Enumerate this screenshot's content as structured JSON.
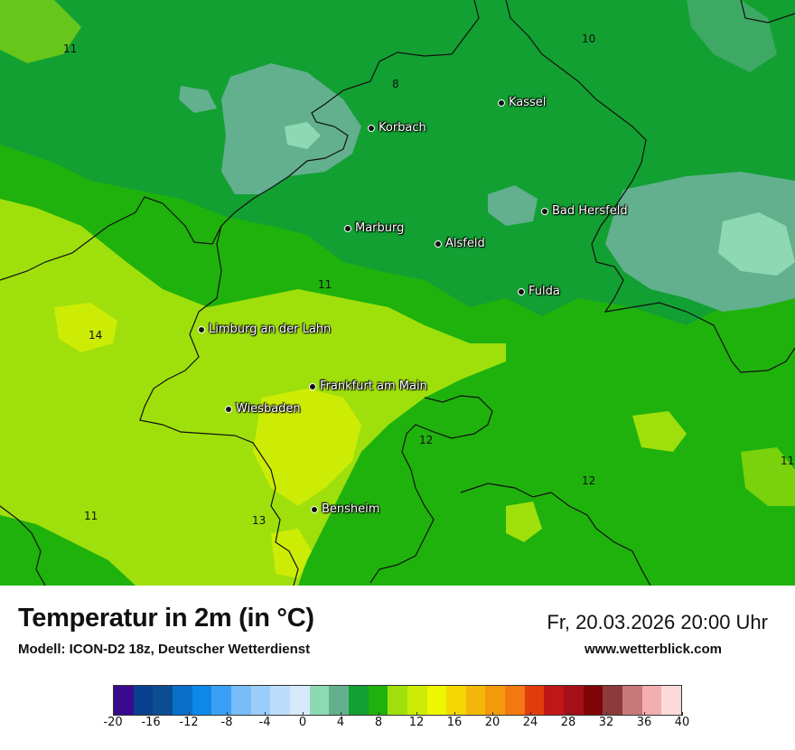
{
  "header": {
    "title": "Temperatur in 2m (in °C)",
    "model": "Modell: ICON-D2 18z, Deutscher Wetterdienst",
    "datetime": "Fr, 20.03.2026 20:00 Uhr",
    "website": "www.wetterblick.com"
  },
  "map": {
    "cities": [
      {
        "name": "Kassel"
      },
      {
        "name": "Korbach"
      },
      {
        "name": "Bad Hersfeld"
      },
      {
        "name": "Marburg"
      },
      {
        "name": "Alsfeld"
      },
      {
        "name": "Fulda"
      },
      {
        "name": "Limburg an der Lahn"
      },
      {
        "name": "Frankfurt am Main"
      },
      {
        "name": "Wiesbaden"
      },
      {
        "name": "Bensheim"
      }
    ],
    "isolines": [
      "11",
      "10",
      "8",
      "11",
      "14",
      "12",
      "12",
      "11",
      "11",
      "13"
    ]
  },
  "legend": {
    "colors": [
      "#3a0a8c",
      "#08408f",
      "#0a4d91",
      "#0a6fc9",
      "#0e88e8",
      "#3aa0f5",
      "#78bcf8",
      "#9acdfa",
      "#bcdcfb",
      "#d6e9fb",
      "#8ed8b4",
      "#62b08e",
      "#12a032",
      "#1fb20c",
      "#9fe00c",
      "#ccec06",
      "#eef700",
      "#f3d604",
      "#f2b70a",
      "#f29a0c",
      "#f47812",
      "#e23c0c",
      "#bf1616",
      "#a40f18",
      "#800407",
      "#8c3a3a",
      "#c77878",
      "#f3aeae",
      "#fcdada"
    ],
    "ticks": [
      "-20",
      "-16",
      "-12",
      "-8",
      "-4",
      "0",
      "4",
      "8",
      "12",
      "16",
      "20",
      "24",
      "28",
      "32",
      "36",
      "40"
    ]
  }
}
